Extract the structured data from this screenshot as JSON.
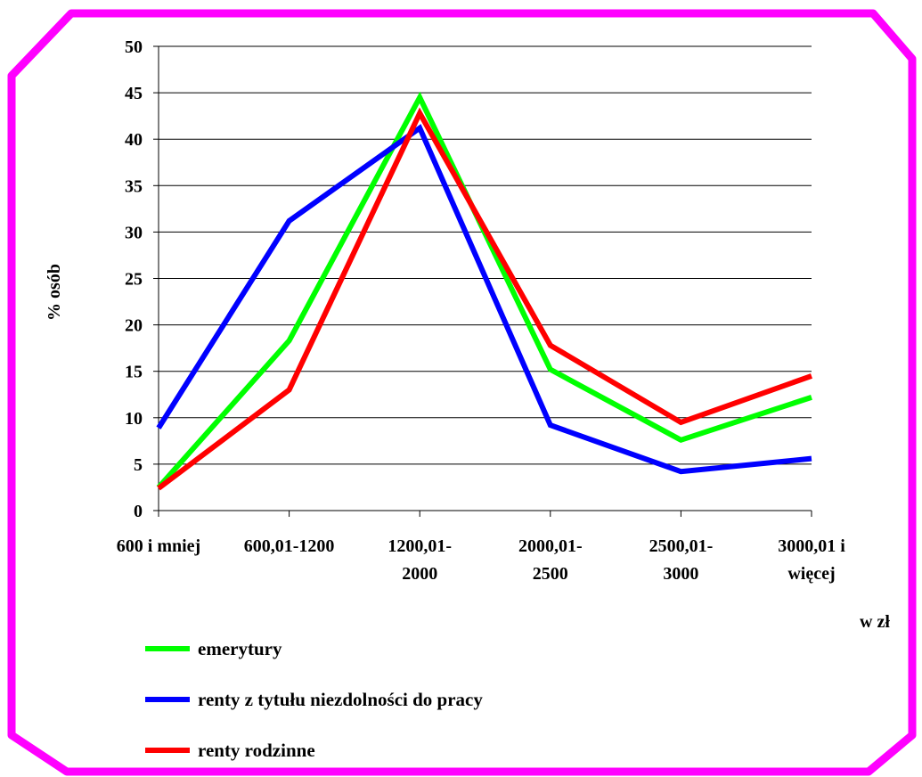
{
  "chart_data": {
    "type": "line",
    "categories": [
      [
        "600 i mniej"
      ],
      [
        "600,01-1200"
      ],
      [
        "1200,01-",
        "2000"
      ],
      [
        "2000,01-",
        "2500"
      ],
      [
        "2500,01-",
        "3000"
      ],
      [
        "3000,01 i",
        "więcej"
      ]
    ],
    "series": [
      {
        "name": "emerytury",
        "color": "#00ff00",
        "values": [
          2.5,
          18.3,
          44.5,
          15.2,
          7.6,
          12.2
        ]
      },
      {
        "name": "renty z tytułu niezdolności do pracy",
        "color": "#0000ff",
        "values": [
          8.9,
          31.2,
          41.2,
          9.2,
          4.2,
          5.6
        ]
      },
      {
        "name": "renty rodzinne",
        "color": "#ff0000",
        "values": [
          2.4,
          13.0,
          42.8,
          17.8,
          9.5,
          14.5
        ]
      }
    ],
    "ylabel": "% osób",
    "xlabel": "w zł",
    "ylim": [
      0,
      50
    ],
    "yticks": [
      0,
      5,
      10,
      15,
      20,
      25,
      30,
      35,
      40,
      45,
      50
    ],
    "grid": "horizontal",
    "legend": "bottom-left",
    "border_color": "#ff00ff"
  }
}
